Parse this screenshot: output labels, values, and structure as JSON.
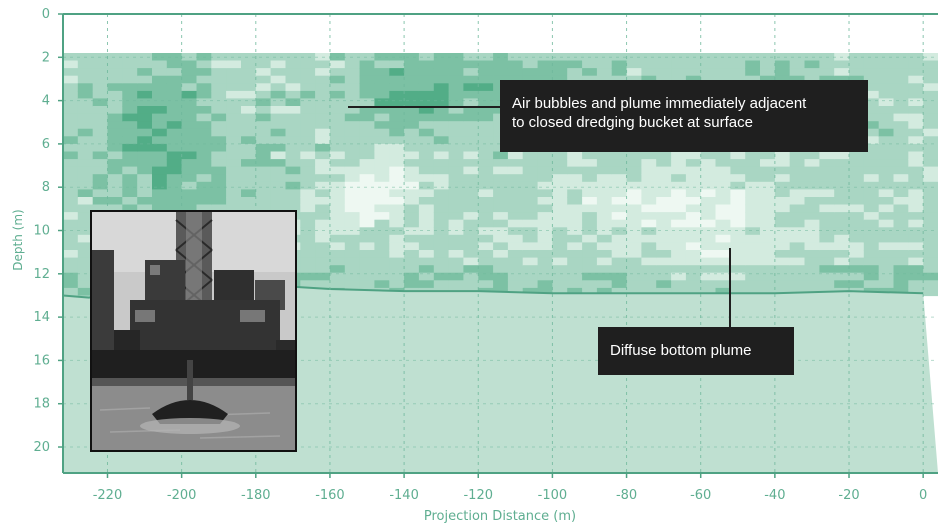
{
  "chart_data": {
    "type": "heatmap",
    "title": "",
    "xlabel": "Projection Distance (m)",
    "ylabel": "Depth (m)",
    "xlim": [
      -232,
      4
    ],
    "ylim": [
      0,
      21.2
    ],
    "y_inverted": true,
    "x_ticks": [
      "-220",
      "-200",
      "-180",
      "-160",
      "-140",
      "-120",
      "-100",
      "-80",
      "-60",
      "-40",
      "-20",
      "0"
    ],
    "y_ticks": [
      "0",
      "2",
      "4",
      "6",
      "8",
      "10",
      "12",
      "14",
      "16",
      "18",
      "20"
    ],
    "grid": "dashed vertical and horizontal",
    "data_start_depth": 1.8,
    "bottom_depth_profile": {
      "x": [
        -232,
        -225,
        -220,
        -200,
        -180,
        -170,
        -160,
        -140,
        -120,
        -100,
        -80,
        -60,
        -40,
        -20,
        0
      ],
      "depth": [
        13.0,
        13.1,
        12.9,
        12.8,
        12.8,
        12.6,
        12.7,
        12.8,
        12.8,
        12.9,
        12.9,
        12.9,
        12.9,
        12.8,
        12.9
      ]
    },
    "annotations": [
      {
        "id": "surface_plume",
        "lines": [
          "Air bubbles and plume immediately adjacent",
          "to closed dredging bucket at surface"
        ]
      },
      {
        "id": "bottom_plume",
        "lines": [
          "Diffuse bottom plume"
        ]
      }
    ],
    "colors": {
      "axis": "#4fa283",
      "tick_label": "#5fae91",
      "grid": "#6fb89c",
      "high": "#52ad87",
      "mid_high": "#7cc1a4",
      "mid": "#a9d6c3",
      "low": "#d3ebdf",
      "very_low": "#eef8f2",
      "bottom_area": "#bfe0d1",
      "bottom_line": "#4fa283",
      "annotation_bg": "#1f1f1f",
      "annotation_text": "#ffffff"
    }
  },
  "inset_photo": {
    "subject": "dredging barge with closed clamshell bucket at water surface",
    "style": "grayscale photograph"
  }
}
